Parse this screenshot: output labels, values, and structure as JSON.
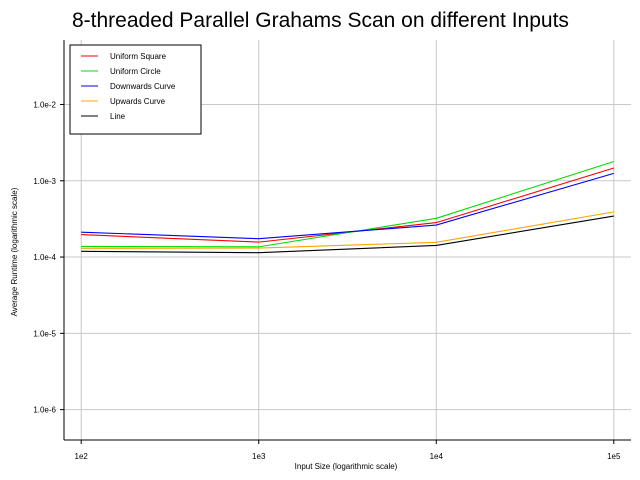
{
  "chart_data": {
    "type": "line",
    "title": "8-threaded Parallel Grahams Scan on different Inputs",
    "xlabel": "Input Size (logarithmic scale)",
    "ylabel": "Average Runtime (logarithmic scale)",
    "x_scale": "log",
    "y_scale": "log",
    "x": [
      100,
      1000,
      10000,
      100000
    ],
    "x_tick_values": [
      100,
      1000,
      10000,
      100000
    ],
    "x_tick_labels": [
      "1e2",
      "1e3",
      "1e4",
      "1e5"
    ],
    "y_tick_values": [
      1e-06,
      1e-05,
      0.0001,
      0.001,
      0.01
    ],
    "y_tick_labels": [
      "1.0e-6",
      "1.0e-5",
      "1.0e-4",
      "1.0e-3",
      "1.0e-2"
    ],
    "xlim": [
      80,
      125000
    ],
    "ylim": [
      4e-07,
      0.07
    ],
    "grid": true,
    "legend_position": "top-left",
    "series": [
      {
        "name": "Uniform Square",
        "color": "#ff0000",
        "values": [
          0.000197,
          0.000157,
          0.000283,
          0.00147
        ]
      },
      {
        "name": "Uniform Circle",
        "color": "#00dd00",
        "values": [
          0.000138,
          0.000136,
          0.000322,
          0.00179
        ]
      },
      {
        "name": "Downwards Curve",
        "color": "#0000ff",
        "values": [
          0.000212,
          0.000174,
          0.000263,
          0.00125
        ]
      },
      {
        "name": "Upwards Curve",
        "color": "#ffa500",
        "values": [
          0.00013,
          0.000131,
          0.000156,
          0.000391
        ]
      },
      {
        "name": "Line",
        "color": "#000000",
        "values": [
          0.000119,
          0.000114,
          0.000142,
          0.000345
        ]
      }
    ]
  }
}
